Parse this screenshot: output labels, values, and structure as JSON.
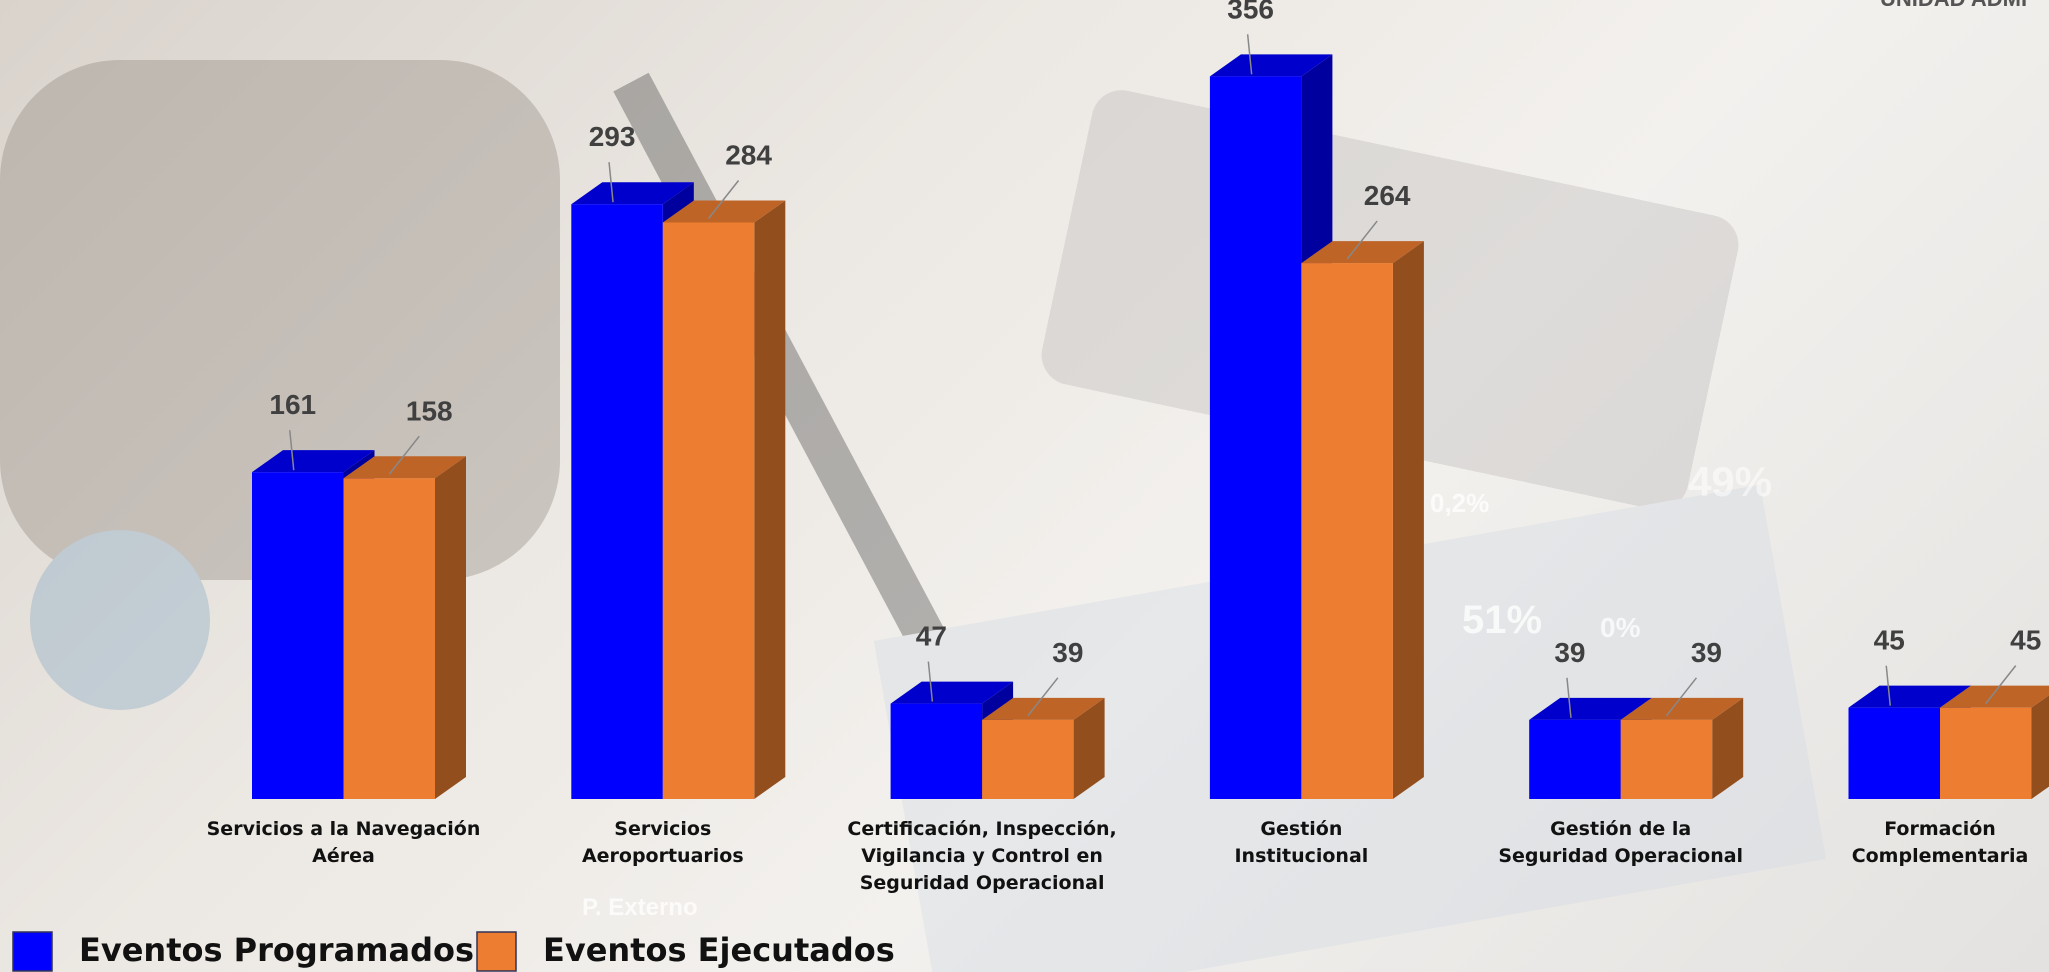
{
  "chart_data": {
    "type": "bar3d",
    "categories": [
      "Servicios a la Navegación\nAérea",
      "Servicios\nAeroportuarios",
      "Certificación, Inspección,\nVigilancia y Control en\nSeguridad Operacional",
      "Gestión\nInstitucional",
      "Gestión de la\nSeguridad Operacional",
      "Formación\nComplementaria"
    ],
    "series": [
      {
        "name": "Eventos Programados",
        "color": "#0000ff",
        "values": [
          161,
          293,
          47,
          356,
          39,
          45
        ]
      },
      {
        "name": "Eventos Ejecutados",
        "color": "#ed7d31",
        "values": [
          158,
          284,
          39,
          264,
          39,
          45
        ]
      }
    ],
    "legend": "bottom-left",
    "annotations": [
      "UNIDAD ADMI",
      "49%",
      "0,2%",
      "51%",
      "0%",
      "P. Externo"
    ]
  }
}
